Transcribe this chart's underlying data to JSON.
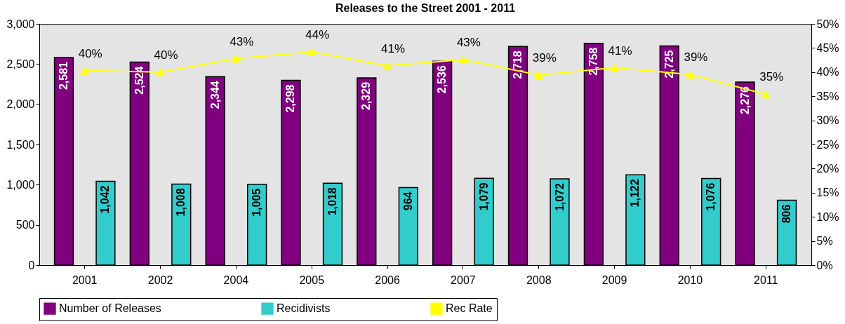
{
  "chart_data": {
    "type": "bar",
    "title": "Releases to the Street 2001 - 2011",
    "categories": [
      "2001",
      "2002",
      "2004",
      "2005",
      "2006",
      "2007",
      "2008",
      "2009",
      "2010",
      "2011"
    ],
    "series": [
      {
        "name": "Number of Releases",
        "color": "#800080",
        "values": [
          2581,
          2524,
          2344,
          2298,
          2329,
          2536,
          2718,
          2758,
          2725,
          2276
        ],
        "value_labels": [
          "2,581",
          "2,524",
          "2,344",
          "2,298",
          "2,329",
          "2,536",
          "2,718",
          "2,758",
          "2,725",
          "2,276"
        ]
      },
      {
        "name": "Recidivists",
        "color": "#33cccc",
        "values": [
          1042,
          1008,
          1005,
          1018,
          964,
          1079,
          1072,
          1122,
          1076,
          806
        ],
        "value_labels": [
          "1,042",
          "1,008",
          "1,005",
          "1,018",
          "964",
          "1,079",
          "1,072",
          "1,122",
          "1,076",
          "806"
        ]
      },
      {
        "name": "Rec Rate",
        "type": "line",
        "axis": "y2",
        "color": "#ffff00",
        "marker": "triangle",
        "values": [
          40.3,
          40.0,
          42.8,
          44.2,
          41.3,
          42.6,
          39.4,
          40.9,
          39.5,
          35.4
        ],
        "value_labels": [
          "40%",
          "40%",
          "43%",
          "44%",
          "41%",
          "43%",
          "39%",
          "41%",
          "39%",
          "35%"
        ]
      }
    ],
    "ylim": [
      0,
      3000
    ],
    "yticks": [
      0,
      500,
      {
        "value": 1000,
        "label": "1,000"
      },
      {
        "value": 1500,
        "label": "1,500"
      },
      {
        "value": 2000,
        "label": "2,000"
      },
      {
        "value": 2500,
        "label": "2,500"
      },
      {
        "value": 3000,
        "label": "3,000"
      }
    ],
    "y2lim": [
      0,
      50
    ],
    "y2ticks": [
      {
        "value": 0,
        "label": "0%"
      },
      {
        "value": 5,
        "label": "5%"
      },
      {
        "value": 10,
        "label": "10%"
      },
      {
        "value": 15,
        "label": "15%"
      },
      {
        "value": 20,
        "label": "20%"
      },
      {
        "value": 25,
        "label": "25%"
      },
      {
        "value": 30,
        "label": "30%"
      },
      {
        "value": 35,
        "label": "35%"
      },
      {
        "value": 40,
        "label": "40%"
      },
      {
        "value": 45,
        "label": "45%"
      },
      {
        "value": 50,
        "label": "50%"
      }
    ],
    "grid": false,
    "legend": "bottom"
  }
}
